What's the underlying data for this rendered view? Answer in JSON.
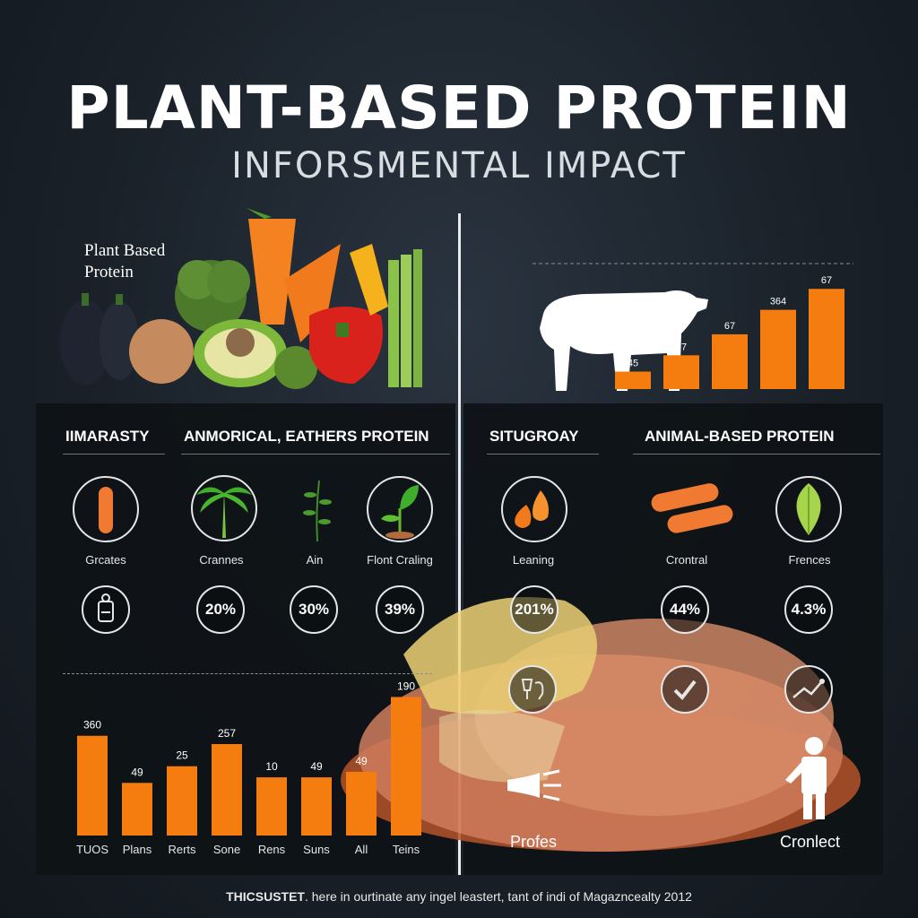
{
  "title": "PLANT-BASED PROTEIN",
  "subtitle": "INFORSMENTAL IMPACT",
  "veg_caption_line1": "Plant Based",
  "veg_caption_line2": "Protein",
  "colors": {
    "accent": "#f57c0f",
    "panel": "#0e1216",
    "text": "#ffffff"
  },
  "left_panel": {
    "heading1": "IIMARASTY",
    "heading2": "ANMORICAL, EATHERS PROTEIN",
    "icons": [
      {
        "icon": "carrot-icon",
        "label": "Grcates"
      },
      {
        "icon": "palm-tree-icon",
        "label": "Crannes"
      },
      {
        "icon": "herb-sprig-icon",
        "label": "Ain"
      },
      {
        "icon": "seedling-icon",
        "label": "Flont Craling"
      }
    ],
    "percents": [
      "20%",
      "30%",
      "39%"
    ]
  },
  "right_panel": {
    "heading1": "SITUGROAY",
    "heading2": "ANIMAL-BASED PROTEIN",
    "icons": [
      {
        "icon": "water-drops-icon",
        "label": "Leaning"
      },
      {
        "icon": "sausage-icon",
        "label": "Crontral"
      },
      {
        "icon": "leaf-icon",
        "label": "Frences"
      }
    ],
    "percents": [
      "201%",
      "44%",
      "4.3%"
    ],
    "bottom_labels": [
      "Profes",
      "Cronlect"
    ]
  },
  "chart_data": [
    {
      "type": "bar",
      "title": "",
      "categories": [
        "",
        "",
        "",
        "",
        ""
      ],
      "labels": [
        "45",
        "37",
        "67",
        "364",
        "67"
      ],
      "values": [
        15,
        29,
        47,
        68,
        86
      ],
      "ylim": [
        0,
        100
      ],
      "legend": "none",
      "grid": false
    },
    {
      "type": "bar",
      "title": "",
      "categories": [
        "TUOS",
        "Plans",
        "Rerts",
        "Sone",
        "Rens",
        "Suns",
        "All",
        "Teins"
      ],
      "labels": [
        "360",
        "49",
        "25",
        "257",
        "10",
        "49",
        "49",
        "190"
      ],
      "values": [
        72,
        38,
        50,
        66,
        42,
        42,
        46,
        100
      ],
      "ylim": [
        0,
        110
      ],
      "legend": "none",
      "grid": false
    }
  ],
  "footer": {
    "bold": "THICSUSTET",
    "rest": ". here in ourtinate any ingel leastert, tant of indi of Magazncealty 2012"
  }
}
